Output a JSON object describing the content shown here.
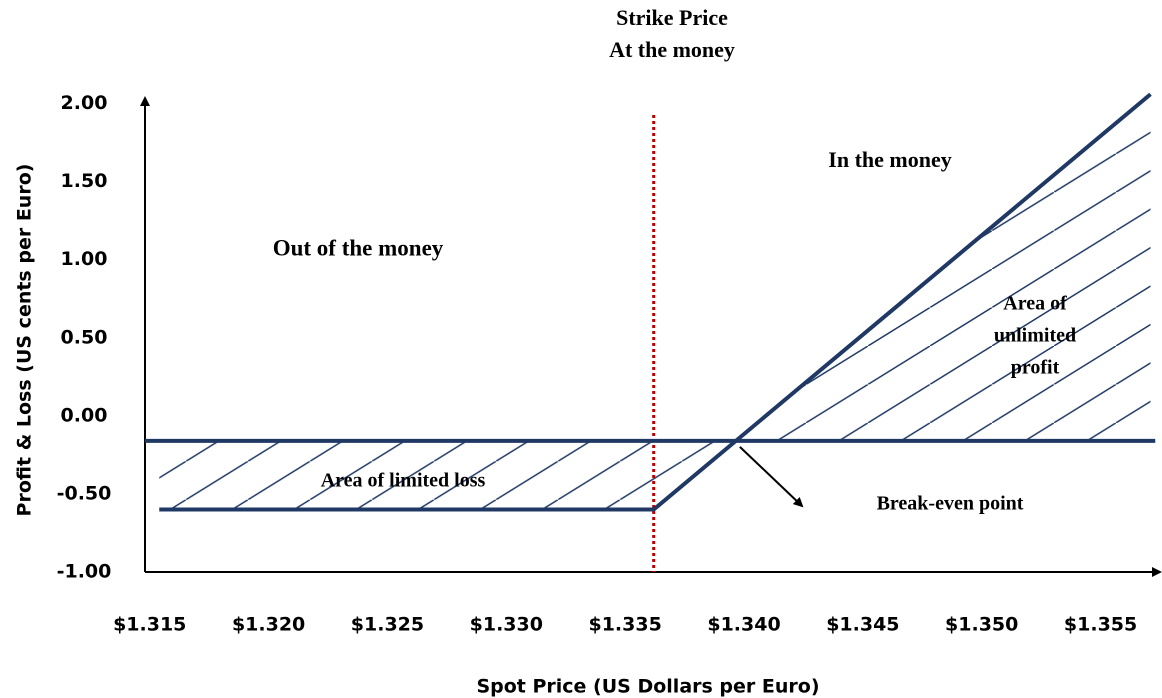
{
  "chart_data": {
    "type": "line",
    "x_label": "Spot Price (US Dollars per Euro)",
    "y_label": "Profit & Loss (US cents per Euro)",
    "xlim": [
      1.3148,
      1.3575
    ],
    "ylim": [
      -1.0,
      2.1
    ],
    "xticks": [
      {
        "value": 1.315,
        "label": "$1.315"
      },
      {
        "value": 1.32,
        "label": "$1.320"
      },
      {
        "value": 1.325,
        "label": "$1.325"
      },
      {
        "value": 1.33,
        "label": "$1.330"
      },
      {
        "value": 1.335,
        "label": "$1.335"
      },
      {
        "value": 1.34,
        "label": "$1.340"
      },
      {
        "value": 1.345,
        "label": "$1.345"
      },
      {
        "value": 1.35,
        "label": "$1.350"
      },
      {
        "value": 1.355,
        "label": "$1.355"
      }
    ],
    "yticks": [
      {
        "value": -1.0,
        "label": "-1.00"
      },
      {
        "value": -0.5,
        "label": "-0.50"
      },
      {
        "value": 0.0,
        "label": "0.00"
      },
      {
        "value": 0.5,
        "label": "0.50"
      },
      {
        "value": 1.0,
        "label": "1.00"
      },
      {
        "value": 1.5,
        "label": "1.50"
      },
      {
        "value": 2.0,
        "label": "2.00"
      }
    ],
    "strike": 1.3362,
    "strike_color": "#c00000",
    "series": [
      {
        "color": "#1f3864",
        "x": [
          1.3154,
          1.3362,
          1.3571
        ],
        "values": [
          -0.6,
          -0.6,
          2.06
        ]
      },
      {
        "color": "#1f3864",
        "x": [
          1.3148,
          1.3573
        ],
        "values": [
          -0.16,
          -0.16
        ]
      }
    ],
    "annotations": [
      "Strike Price",
      "At the money",
      "In the money",
      "Out of the money",
      "Area of",
      "unlimited",
      "profit",
      "Area of limited loss",
      "Break-even point"
    ]
  }
}
